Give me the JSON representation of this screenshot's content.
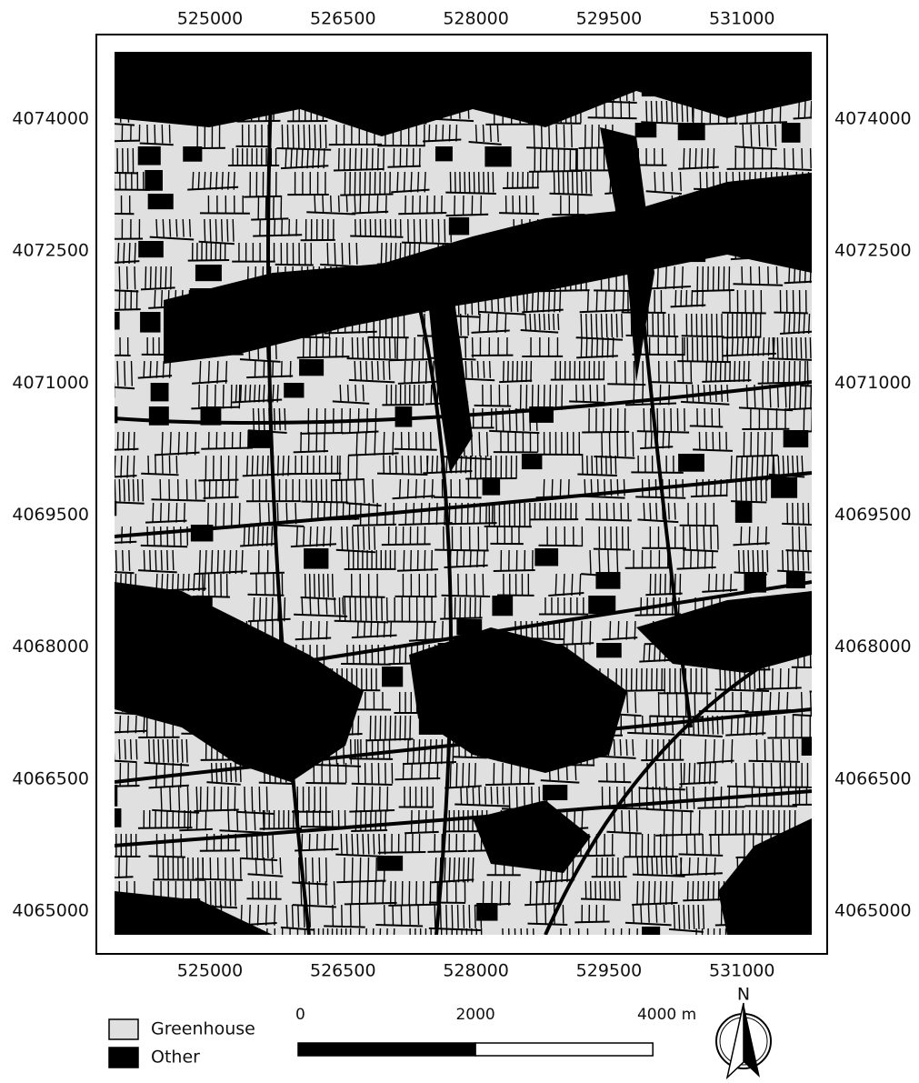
{
  "map": {
    "xlim": [
      523924,
      531787
    ],
    "ylim": [
      4064731,
      4074764
    ],
    "xticks": [
      525000,
      526500,
      528000,
      529500,
      531000
    ],
    "yticks": [
      4074000,
      4072500,
      4071000,
      4069500,
      4068000,
      4066500,
      4065000
    ]
  },
  "legend": [
    {
      "label": "Greenhouse",
      "color": "#e0e0e0"
    },
    {
      "label": "Other",
      "color": "#000000"
    }
  ],
  "scale_bar": {
    "ticks": [
      0,
      2000,
      {
        "value": 4000,
        "label": "4000 m"
      }
    ]
  },
  "north_label": "N"
}
